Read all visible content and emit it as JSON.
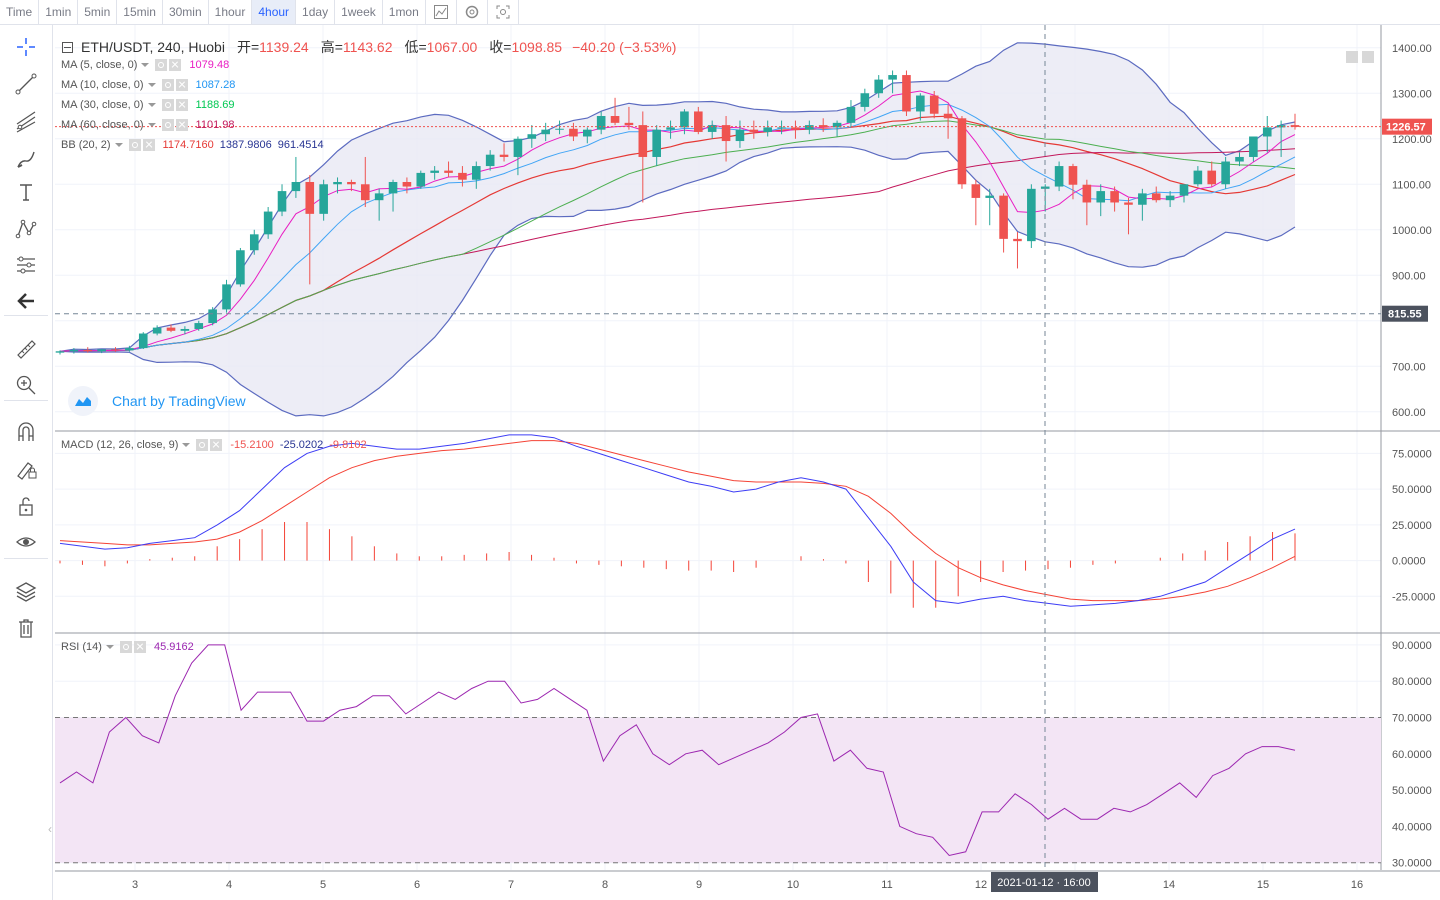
{
  "timeframes": [
    {
      "label": "Time",
      "active": false
    },
    {
      "label": "1min",
      "active": false
    },
    {
      "label": "5min",
      "active": false
    },
    {
      "label": "15min",
      "active": false
    },
    {
      "label": "30min",
      "active": false
    },
    {
      "label": "1hour",
      "active": false
    },
    {
      "label": "4hour",
      "active": true
    },
    {
      "label": "1day",
      "active": false
    },
    {
      "label": "1week",
      "active": false
    },
    {
      "label": "1mon",
      "active": false
    }
  ],
  "toolbar_icons": [
    "chart-style-icon",
    "settings-icon",
    "screenshot-icon"
  ],
  "left_tools": [
    "crosshair-icon",
    "trend-line-icon",
    "fib-tool-icon",
    "brush-icon",
    "text-icon",
    "pattern-icon",
    "prediction-icon",
    "back-arrow-icon",
    "ruler-icon",
    "zoom-in-icon",
    "magnet-icon",
    "lock-drawing-icon",
    "unlock-icon",
    "eye-icon",
    "layers-icon",
    "trash-icon"
  ],
  "header": {
    "symbol": "ETH/USDT, 240, Huobi",
    "open_label": "开=",
    "open": "1139.24",
    "high_label": "高=",
    "high": "1143.62",
    "low_label": "低=",
    "low": "1067.00",
    "close_label": "收=",
    "close": "1098.85",
    "change": "−40.20 (−3.53%)"
  },
  "indicators": [
    {
      "name": "MA (5, close, 0)",
      "value": "1079.48",
      "color": "#e91ec3"
    },
    {
      "name": "MA (10, close, 0)",
      "value": "1087.28",
      "color": "#2196f3"
    },
    {
      "name": "MA (30, close, 0)",
      "value": "1188.69",
      "color": "#00c853"
    },
    {
      "name": "MA (60, close, 0)",
      "value": "1101.98",
      "color": "#c2185b"
    },
    {
      "name": "BB (20, 2)",
      "values": [
        "1174.7160",
        "1387.9806",
        "961.4514"
      ],
      "colors": [
        "#e53935",
        "#283593",
        "#283593"
      ]
    }
  ],
  "watermark": "Chart by TradingView",
  "colors": {
    "up": "#26a69a",
    "down": "#ef5350",
    "bb_band": "#5c6bc0",
    "bb_fill": "#e8e8f4",
    "ma5": "#e91ec3",
    "ma10": "#42a5f5",
    "ma30": "#4caf50",
    "ma60": "#c2185b",
    "bb_mid": "#e53935",
    "macd": "#3d3df5",
    "signal": "#f44336",
    "rsi": "#9c27b0",
    "rsi_fill": "#f3e5f5"
  },
  "price_axis": {
    "ticks": [
      "1400.00",
      "1300.00",
      "1200.00",
      "1100.00",
      "1000.00",
      "900.00",
      "800.00",
      "700.00",
      "600.00"
    ],
    "last_price": "1226.57",
    "crosshair_price": "815.55",
    "range": [
      560,
      1450
    ]
  },
  "macd": {
    "label": "MACD (12, 26, close, 9)",
    "values": [
      "-15.2100",
      "-25.0202",
      "-9.8102"
    ],
    "value_colors": [
      "#ef5350",
      "#283593",
      "#ef5350"
    ],
    "ticks": [
      "75.0000",
      "50.0000",
      "25.0000",
      "0.0000",
      "-25.0000"
    ],
    "range": [
      -50,
      90
    ]
  },
  "rsi": {
    "label": "RSI (14)",
    "value": "45.9162",
    "ticks": [
      "90.0000",
      "80.0000",
      "70.0000",
      "60.0000",
      "50.0000",
      "40.0000",
      "30.0000"
    ],
    "range": [
      28,
      93
    ],
    "upper": 70,
    "lower": 30
  },
  "time_axis": {
    "labels": [
      "3",
      "4",
      "5",
      "6",
      "7",
      "8",
      "9",
      "10",
      "11",
      "12",
      "13",
      "14",
      "15",
      "16"
    ],
    "crosshair_label": "2021-01-12 · 16:00"
  },
  "chart_data": {
    "type": "candlestick",
    "symbol": "ETH/USDT",
    "interval": "240",
    "x_labels": [
      "3",
      "4",
      "5",
      "6",
      "7",
      "8",
      "9",
      "10",
      "11",
      "12",
      "13",
      "14",
      "15",
      "16"
    ],
    "candles": [
      [
        730,
        735,
        726,
        733
      ],
      [
        733,
        740,
        728,
        736
      ],
      [
        736,
        742,
        730,
        733
      ],
      [
        733,
        738,
        729,
        737
      ],
      [
        737,
        742,
        732,
        735
      ],
      [
        735,
        745,
        732,
        740
      ],
      [
        740,
        775,
        738,
        772
      ],
      [
        772,
        790,
        768,
        785
      ],
      [
        785,
        792,
        775,
        778
      ],
      [
        778,
        788,
        770,
        782
      ],
      [
        782,
        800,
        778,
        795
      ],
      [
        795,
        830,
        790,
        825
      ],
      [
        825,
        890,
        818,
        880
      ],
      [
        880,
        960,
        875,
        955
      ],
      [
        955,
        1000,
        945,
        990
      ],
      [
        990,
        1050,
        980,
        1040
      ],
      [
        1040,
        1100,
        1030,
        1085
      ],
      [
        1085,
        1160,
        1070,
        1105
      ],
      [
        1105,
        1120,
        880,
        1035
      ],
      [
        1035,
        1110,
        1020,
        1100
      ],
      [
        1100,
        1115,
        1080,
        1105
      ],
      [
        1105,
        1110,
        1085,
        1100
      ],
      [
        1100,
        1160,
        1050,
        1065
      ],
      [
        1065,
        1090,
        1020,
        1080
      ],
      [
        1080,
        1110,
        1040,
        1105
      ],
      [
        1105,
        1115,
        1080,
        1095
      ],
      [
        1095,
        1130,
        1090,
        1125
      ],
      [
        1125,
        1140,
        1110,
        1130
      ],
      [
        1130,
        1150,
        1115,
        1125
      ],
      [
        1125,
        1140,
        1095,
        1110
      ],
      [
        1110,
        1150,
        1090,
        1140
      ],
      [
        1140,
        1175,
        1130,
        1165
      ],
      [
        1165,
        1190,
        1150,
        1160
      ],
      [
        1160,
        1205,
        1120,
        1200
      ],
      [
        1200,
        1230,
        1180,
        1210
      ],
      [
        1210,
        1235,
        1195,
        1220
      ],
      [
        1220,
        1240,
        1210,
        1222
      ],
      [
        1222,
        1235,
        1195,
        1205
      ],
      [
        1205,
        1225,
        1190,
        1220
      ],
      [
        1220,
        1260,
        1210,
        1250
      ],
      [
        1250,
        1290,
        1230,
        1235
      ],
      [
        1235,
        1270,
        1220,
        1230
      ],
      [
        1230,
        1260,
        1060,
        1160
      ],
      [
        1160,
        1230,
        1140,
        1220
      ],
      [
        1220,
        1240,
        1200,
        1225
      ],
      [
        1225,
        1265,
        1210,
        1260
      ],
      [
        1260,
        1270,
        1210,
        1215
      ],
      [
        1215,
        1240,
        1200,
        1230
      ],
      [
        1230,
        1250,
        1150,
        1195
      ],
      [
        1195,
        1240,
        1180,
        1220
      ],
      [
        1220,
        1240,
        1200,
        1215
      ],
      [
        1215,
        1240,
        1205,
        1225
      ],
      [
        1225,
        1240,
        1210,
        1225
      ],
      [
        1225,
        1240,
        1200,
        1220
      ],
      [
        1220,
        1240,
        1210,
        1230
      ],
      [
        1230,
        1245,
        1215,
        1225
      ],
      [
        1225,
        1240,
        1205,
        1235
      ],
      [
        1235,
        1285,
        1225,
        1270
      ],
      [
        1270,
        1310,
        1260,
        1300
      ],
      [
        1300,
        1340,
        1290,
        1330
      ],
      [
        1330,
        1350,
        1300,
        1340
      ],
      [
        1340,
        1350,
        1250,
        1260
      ],
      [
        1260,
        1300,
        1240,
        1295
      ],
      [
        1295,
        1305,
        1245,
        1255
      ],
      [
        1255,
        1275,
        1200,
        1245
      ],
      [
        1245,
        1250,
        1090,
        1100
      ],
      [
        1100,
        1110,
        1010,
        1070
      ],
      [
        1070,
        1090,
        1010,
        1075
      ],
      [
        1075,
        1080,
        950,
        980
      ],
      [
        980,
        995,
        915,
        975
      ],
      [
        975,
        1100,
        960,
        1090
      ],
      [
        1090,
        1100,
        1040,
        1095
      ],
      [
        1095,
        1150,
        1085,
        1140
      ],
      [
        1140,
        1145,
        1067,
        1099
      ],
      [
        1099,
        1110,
        1010,
        1060
      ],
      [
        1060,
        1100,
        1030,
        1085
      ],
      [
        1085,
        1095,
        1040,
        1060
      ],
      [
        1060,
        1070,
        990,
        1055
      ],
      [
        1055,
        1090,
        1020,
        1080
      ],
      [
        1080,
        1095,
        1060,
        1065
      ],
      [
        1065,
        1085,
        1050,
        1075
      ],
      [
        1075,
        1095,
        1060,
        1100
      ],
      [
        1100,
        1140,
        1095,
        1130
      ],
      [
        1130,
        1150,
        1095,
        1100
      ],
      [
        1100,
        1160,
        1090,
        1150
      ],
      [
        1150,
        1170,
        1140,
        1160
      ],
      [
        1160,
        1200,
        1150,
        1205
      ],
      [
        1205,
        1250,
        1170,
        1225
      ],
      [
        1225,
        1240,
        1160,
        1230
      ],
      [
        1230,
        1255,
        1220,
        1226
      ]
    ],
    "macd_line": [
      12,
      10,
      8,
      9,
      12,
      14,
      16,
      25,
      35,
      50,
      65,
      75,
      80,
      82,
      80,
      78,
      78,
      80,
      82,
      85,
      88,
      88,
      86,
      80,
      75,
      70,
      65,
      60,
      55,
      52,
      48,
      50,
      55,
      58,
      55,
      50,
      30,
      10,
      -15,
      -28,
      -30,
      -27,
      -25,
      -28,
      -30,
      -32,
      -31,
      -30,
      -28,
      -25,
      -20,
      -15,
      -5,
      5,
      15,
      22
    ],
    "signal_line": [
      14,
      13,
      12,
      11,
      11,
      12,
      13,
      15,
      20,
      28,
      38,
      48,
      58,
      65,
      70,
      73,
      75,
      77,
      78,
      80,
      82,
      84,
      84,
      82,
      78,
      74,
      70,
      66,
      62,
      59,
      56,
      55,
      55,
      55,
      54,
      52,
      45,
      33,
      18,
      5,
      -5,
      -12,
      -17,
      -21,
      -24,
      -27,
      -28,
      -28,
      -28,
      -27,
      -25,
      -22,
      -18,
      -12,
      -5,
      3
    ],
    "rsi": [
      52,
      55,
      52,
      66,
      70,
      65,
      63,
      76,
      85,
      90,
      90,
      72,
      77,
      77,
      77,
      69,
      69,
      72,
      73,
      76,
      76,
      71,
      74,
      77,
      75,
      78,
      80,
      80,
      74,
      75,
      78,
      75,
      72,
      58,
      65,
      68,
      60,
      57,
      60,
      61,
      57,
      59,
      61,
      63,
      66,
      70,
      71,
      58,
      61,
      56,
      55,
      40,
      38,
      37,
      32,
      33,
      44,
      44,
      49,
      46,
      42,
      45,
      42,
      42,
      45,
      44,
      46,
      49,
      52,
      48,
      54,
      56,
      60,
      62,
      62,
      61
    ]
  }
}
